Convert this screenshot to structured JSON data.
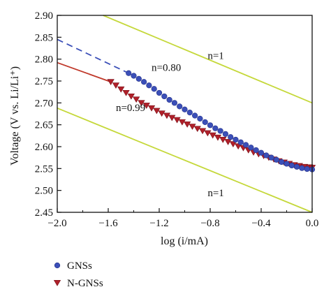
{
  "chart_data": {
    "type": "scatter",
    "xlabel": "log (i/mA)",
    "ylabel": "Voltage (V vs. Li/Li⁺)",
    "xlim": [
      -2.0,
      0.0
    ],
    "ylim": [
      2.45,
      2.9
    ],
    "x_ticks": [
      "−2.0",
      "−1.6",
      "−1.2",
      "−0.8",
      "−0.4",
      "0.0"
    ],
    "x_tick_values": [
      -2.0,
      -1.6,
      -1.2,
      -0.8,
      -0.4,
      0.0
    ],
    "y_ticks": [
      "2.45",
      "2.50",
      "2.55",
      "2.60",
      "2.65",
      "2.70",
      "2.75",
      "2.80",
      "2.85",
      "2.90"
    ],
    "y_tick_values": [
      2.45,
      2.5,
      2.55,
      2.6,
      2.65,
      2.7,
      2.75,
      2.8,
      2.85,
      2.9
    ],
    "grid": false,
    "legend_placement": "bottom-left, below plot",
    "series": [
      {
        "name": "GNSs",
        "marker": "circle",
        "color": "#3b4fb8",
        "x": [
          -1.44,
          -1.4,
          -1.36,
          -1.32,
          -1.28,
          -1.24,
          -1.2,
          -1.16,
          -1.12,
          -1.08,
          -1.04,
          -1.0,
          -0.96,
          -0.92,
          -0.88,
          -0.84,
          -0.8,
          -0.76,
          -0.72,
          -0.68,
          -0.64,
          -0.6,
          -0.56,
          -0.52,
          -0.48,
          -0.44,
          -0.4,
          -0.36,
          -0.32,
          -0.28,
          -0.24,
          -0.2,
          -0.16,
          -0.12,
          -0.08,
          -0.04,
          0.0
        ],
        "y": [
          2.768,
          2.762,
          2.755,
          2.748,
          2.74,
          2.732,
          2.723,
          2.715,
          2.707,
          2.7,
          2.692,
          2.685,
          2.678,
          2.671,
          2.664,
          2.656,
          2.649,
          2.642,
          2.636,
          2.629,
          2.622,
          2.616,
          2.61,
          2.604,
          2.598,
          2.592,
          2.586,
          2.58,
          2.575,
          2.57,
          2.565,
          2.561,
          2.557,
          2.554,
          2.551,
          2.549,
          2.548
        ]
      },
      {
        "name": "N-GNSs",
        "marker": "triangle-down",
        "color": "#b0202a",
        "x": [
          -1.58,
          -1.54,
          -1.5,
          -1.46,
          -1.42,
          -1.38,
          -1.34,
          -1.3,
          -1.26,
          -1.22,
          -1.18,
          -1.14,
          -1.1,
          -1.06,
          -1.02,
          -0.98,
          -0.94,
          -0.9,
          -0.86,
          -0.82,
          -0.78,
          -0.74,
          -0.7,
          -0.66,
          -0.62,
          -0.58,
          -0.54,
          -0.5,
          -0.46,
          -0.42,
          -0.38,
          -0.34,
          -0.3,
          -0.26,
          -0.22,
          -0.18,
          -0.14,
          -0.1,
          -0.06,
          -0.02,
          0.0
        ],
        "y": [
          2.748,
          2.74,
          2.731,
          2.723,
          2.715,
          2.708,
          2.7,
          2.694,
          2.688,
          2.682,
          2.676,
          2.671,
          2.666,
          2.661,
          2.656,
          2.651,
          2.646,
          2.641,
          2.636,
          2.631,
          2.626,
          2.621,
          2.616,
          2.611,
          2.606,
          2.601,
          2.597,
          2.592,
          2.587,
          2.583,
          2.579,
          2.575,
          2.571,
          2.567,
          2.564,
          2.561,
          2.558,
          2.556,
          2.554,
          2.553,
          2.552
        ]
      }
    ],
    "fit_lines": [
      {
        "label": "n=0.80",
        "color": "#3b4fb8",
        "style": "dashed",
        "x": [
          -2.0,
          -1.44
        ],
        "y": [
          2.845,
          2.768
        ]
      },
      {
        "label": "n=0.99",
        "color": "#c0392b",
        "style": "solid",
        "x": [
          -2.0,
          -1.58
        ],
        "y": [
          2.792,
          2.748
        ]
      }
    ],
    "reference_lines": [
      {
        "label": "n=1",
        "color": "#c5d83a",
        "x": [
          -1.64,
          0.0
        ],
        "y": [
          2.9,
          2.7
        ]
      },
      {
        "label": "n=1",
        "color": "#c5d83a",
        "x": [
          -2.0,
          0.0
        ],
        "y": [
          2.688,
          2.45
        ]
      }
    ],
    "annotations": [
      {
        "text": "n=1",
        "x": -0.82,
        "y": 2.8
      },
      {
        "text": "n=0.80",
        "x": -1.26,
        "y": 2.773
      },
      {
        "text": "n=0.99",
        "x": -1.54,
        "y": 2.681
      },
      {
        "text": "n=1",
        "x": -0.82,
        "y": 2.487
      }
    ]
  }
}
